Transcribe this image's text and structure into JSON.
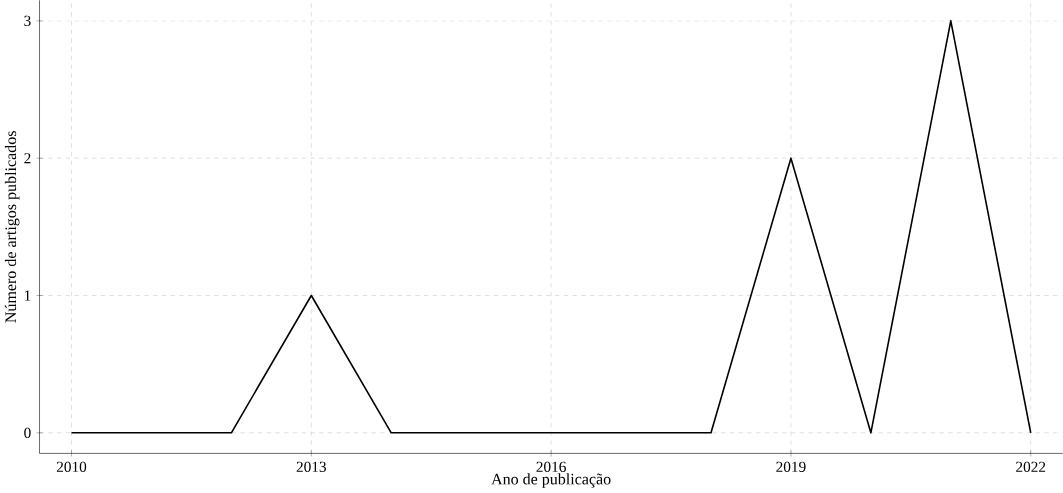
{
  "chart_data": {
    "type": "line",
    "xlabel": "Ano de publicação",
    "ylabel": "Número de artigos publicados",
    "x": [
      2010,
      2011,
      2012,
      2013,
      2014,
      2015,
      2016,
      2017,
      2018,
      2019,
      2020,
      2021,
      2022
    ],
    "values": [
      0,
      0,
      0,
      1,
      0,
      0,
      0,
      0,
      0,
      2,
      0,
      3,
      0
    ],
    "color": "#000000",
    "xlim": [
      2009.6,
      2022.4
    ],
    "xticks": [
      2010,
      2013,
      2016,
      2019,
      2022
    ],
    "ylim": [
      -0.15,
      3.15
    ],
    "yticks": [
      0,
      1,
      2,
      3
    ],
    "grid": true,
    "line_style": "solid"
  }
}
